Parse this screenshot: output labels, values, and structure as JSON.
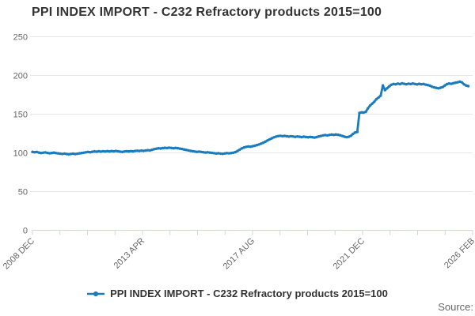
{
  "title": "PPI INDEX IMPORT - C232 Refractory products 2015=100",
  "legend": {
    "label": "PPI INDEX IMPORT - C232 Refractory products 2015=100"
  },
  "source": "Source:",
  "colors": {
    "line": "#1a7cbd",
    "grid": "#e6e6e6",
    "axis": "#ccd6eb",
    "tick_text": "#666666",
    "title_text": "#333333"
  },
  "chart_data": {
    "type": "line",
    "title": "PPI INDEX IMPORT - C232 Refractory products 2015=100",
    "xlabel": "",
    "ylabel": "",
    "ylim": [
      0,
      250
    ],
    "y_ticks": [
      0,
      50,
      100,
      150,
      200,
      250
    ],
    "grid": "horizontal",
    "legend_position": "bottom",
    "x_tick_labels": [
      "2008 DEC",
      "2013 APR",
      "2017 AUG",
      "2021 DEC",
      "2026 FEB"
    ],
    "x_minor_tick_intervals": 16,
    "x_axis_months_total": 206,
    "series": [
      {
        "name": "PPI INDEX IMPORT - C232 Refractory products 2015=100",
        "start": "2008 DEC",
        "frequency": "monthly",
        "values": [
          101.3,
          100.8,
          101.2,
          100.4,
          99.8,
          100.2,
          100.6,
          99.9,
          99.5,
          99.8,
          100.3,
          99.7,
          99.4,
          99.0,
          98.6,
          99.1,
          98.5,
          98.2,
          98.6,
          99.0,
          98.5,
          98.9,
          99.4,
          99.8,
          100.2,
          100.7,
          101.2,
          100.8,
          101.4,
          101.9,
          101.5,
          102.0,
          101.6,
          102.1,
          101.7,
          102.2,
          101.8,
          102.3,
          101.9,
          102.4,
          102.0,
          101.6,
          101.2,
          101.7,
          102.1,
          101.8,
          102.2,
          101.9,
          102.4,
          102.8,
          102.5,
          103.0,
          102.6,
          103.1,
          103.5,
          103.2,
          104.0,
          104.8,
          105.4,
          105.9,
          105.6,
          106.1,
          106.5,
          106.2,
          106.7,
          106.3,
          105.9,
          106.4,
          106.0,
          105.5,
          105.0,
          104.4,
          103.8,
          103.2,
          102.6,
          102.1,
          101.7,
          101.3,
          101.6,
          101.2,
          100.8,
          100.4,
          100.7,
          100.3,
          100.0,
          99.6,
          99.2,
          99.5,
          99.1,
          98.8,
          99.3,
          99.7,
          99.4,
          99.8,
          100.2,
          101.0,
          102.4,
          104.2,
          105.8,
          106.9,
          107.8,
          108.3,
          108.0,
          108.6,
          109.2,
          110.0,
          110.8,
          111.9,
          113.1,
          114.5,
          116.0,
          117.4,
          118.8,
          120.1,
          121.0,
          121.6,
          122.0,
          121.5,
          121.9,
          121.4,
          121.0,
          121.5,
          121.1,
          120.7,
          121.2,
          120.8,
          120.4,
          120.9,
          120.5,
          120.1,
          120.6,
          120.2,
          119.8,
          120.4,
          121.2,
          121.8,
          122.5,
          123.0,
          122.6,
          123.2,
          123.7,
          123.3,
          123.8,
          123.4,
          122.8,
          121.8,
          120.9,
          120.3,
          120.8,
          122.0,
          124.5,
          126.3,
          127.0,
          151.5,
          152.3,
          152.0,
          153.0,
          157.5,
          161.0,
          163.5,
          166.0,
          169.5,
          171.5,
          174.0,
          187.0,
          181.0,
          183.5,
          186.0,
          188.0,
          189.0,
          188.5,
          189.5,
          188.8,
          189.8,
          189.2,
          188.6,
          189.4,
          188.9,
          189.6,
          189.0,
          188.4,
          189.2,
          188.6,
          189.0,
          188.2,
          187.6,
          186.8,
          185.4,
          184.6,
          184.0,
          183.4,
          184.2,
          185.0,
          187.0,
          188.8,
          189.6,
          189.2,
          190.0,
          190.6,
          191.2,
          192.0,
          191.0,
          188.5,
          187.0,
          186.2
        ]
      }
    ]
  }
}
